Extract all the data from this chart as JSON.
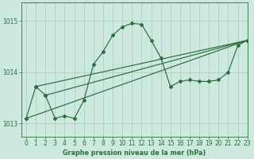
{
  "bg_color": "#cce8df",
  "line_color": "#2d6e3e",
  "grid_color": "#a8ccbc",
  "title": "Graphe pression niveau de la mer (hPa)",
  "xlim": [
    -0.5,
    23
  ],
  "ylim": [
    1012.75,
    1015.35
  ],
  "yticks": [
    1013,
    1014,
    1015
  ],
  "xticks": [
    0,
    1,
    2,
    3,
    4,
    5,
    6,
    7,
    8,
    9,
    10,
    11,
    12,
    13,
    14,
    15,
    16,
    17,
    18,
    19,
    20,
    21,
    22,
    23
  ],
  "series1": [
    [
      0,
      1013.1
    ],
    [
      1,
      1013.72
    ],
    [
      2,
      1013.55
    ],
    [
      3,
      1013.1
    ],
    [
      4,
      1013.15
    ],
    [
      5,
      1013.1
    ],
    [
      6,
      1013.45
    ],
    [
      7,
      1014.15
    ],
    [
      8,
      1014.4
    ],
    [
      9,
      1014.72
    ],
    [
      10,
      1014.88
    ],
    [
      11,
      1014.95
    ],
    [
      12,
      1014.93
    ],
    [
      13,
      1014.62
    ],
    [
      14,
      1014.28
    ],
    [
      15,
      1013.72
    ],
    [
      16,
      1013.82
    ],
    [
      17,
      1013.85
    ],
    [
      18,
      1013.82
    ],
    [
      19,
      1013.82
    ],
    [
      20,
      1013.85
    ],
    [
      21,
      1014.0
    ],
    [
      22,
      1014.52
    ],
    [
      23,
      1014.62
    ]
  ],
  "series2": [
    [
      0,
      1013.1
    ],
    [
      23,
      1014.62
    ]
  ],
  "series3": [
    [
      1,
      1013.72
    ],
    [
      23,
      1014.62
    ]
  ],
  "series4": [
    [
      2,
      1013.55
    ],
    [
      23,
      1014.62
    ]
  ]
}
